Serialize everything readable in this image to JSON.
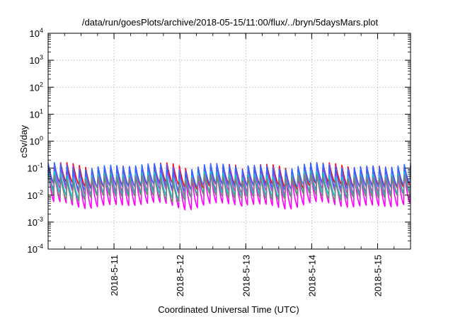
{
  "chart_data": {
    "type": "line",
    "title": "/data/run/goesPlots/archive/2018-05-15/11:00/flux/../bryn/5daysMars.plot",
    "xlabel": "Coordinated Universal Time (UTC)",
    "ylabel": "cSv/day",
    "scale_y": "log",
    "grid": true,
    "xlim": [
      "2018-05-10T00:00",
      "2018-05-15T12:00"
    ],
    "ylim": [
      0.0001,
      10000
    ],
    "x_ticks": [
      {
        "x": "2018-05-11T00:00",
        "label": "2018-5-11"
      },
      {
        "x": "2018-05-12T00:00",
        "label": "2018-5-12"
      },
      {
        "x": "2018-05-13T00:00",
        "label": "2018-5-13"
      },
      {
        "x": "2018-05-14T00:00",
        "label": "2018-5-14"
      },
      {
        "x": "2018-05-15T00:00",
        "label": "2018-5-15"
      }
    ],
    "y_ticks": [
      {
        "exp": "-4",
        "value": 0.0001
      },
      {
        "exp": "-3",
        "value": 0.001
      },
      {
        "exp": "-2",
        "value": 0.01
      },
      {
        "exp": "-1",
        "value": 0.1
      },
      {
        "exp": "0",
        "value": 1
      },
      {
        "exp": "1",
        "value": 10
      },
      {
        "exp": "2",
        "value": 100
      },
      {
        "exp": "3",
        "value": 1000
      },
      {
        "exp": "4",
        "value": 10000
      }
    ],
    "series": [
      {
        "color": "#ff0000",
        "peak": 0.12,
        "trough": 0.022
      },
      {
        "color": "#cc33cc",
        "peak": 0.11,
        "trough": 0.012
      },
      {
        "color": "#ff00ff",
        "peak": 0.065,
        "trough": 0.004
      },
      {
        "color": "#3366ff",
        "peak": 0.12,
        "trough": 0.02
      },
      {
        "color": "#00cccc",
        "peak": 0.06,
        "trough": 0.01
      },
      {
        "color": "#7f7f7f",
        "peak": 0.045,
        "trough": 0.008
      }
    ],
    "oscillations": 58
  }
}
